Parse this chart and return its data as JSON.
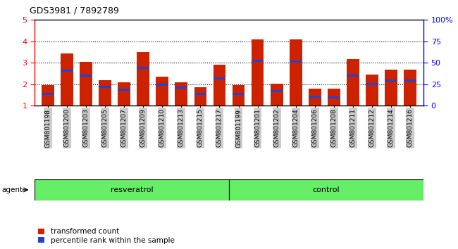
{
  "title": "GDS3981 / 7892789",
  "samples": [
    "GSM801198",
    "GSM801200",
    "GSM801203",
    "GSM801205",
    "GSM801207",
    "GSM801209",
    "GSM801210",
    "GSM801213",
    "GSM801215",
    "GSM801217",
    "GSM801199",
    "GSM801201",
    "GSM801202",
    "GSM801204",
    "GSM801206",
    "GSM801208",
    "GSM801211",
    "GSM801212",
    "GSM801214",
    "GSM801216"
  ],
  "bar_heights": [
    1.97,
    3.43,
    3.03,
    2.18,
    2.1,
    3.5,
    2.37,
    2.11,
    1.86,
    2.93,
    1.97,
    4.08,
    2.04,
    4.08,
    1.81,
    1.8,
    3.18,
    2.47,
    2.7,
    2.7
  ],
  "blue_markers": [
    1.57,
    2.65,
    2.4,
    1.87,
    1.75,
    2.78,
    1.98,
    1.85,
    1.55,
    2.28,
    1.57,
    3.08,
    1.68,
    3.05,
    1.42,
    1.38,
    2.42,
    2.02,
    2.17,
    2.17
  ],
  "group1_label": "resveratrol",
  "group2_label": "control",
  "group1_count": 10,
  "group2_count": 10,
  "bar_color": "#cc2200",
  "blue_color": "#2244cc",
  "bg_color": "#cccccc",
  "group_bg": "#66ee66",
  "ylim_left": [
    1,
    5
  ],
  "ylim_right": [
    0,
    100
  ],
  "yticks_left": [
    1,
    2,
    3,
    4,
    5
  ],
  "yticks_right": [
    0,
    25,
    50,
    75,
    100
  ],
  "ytick_labels_right": [
    "0",
    "25",
    "50",
    "75",
    "100%"
  ],
  "legend_labels": [
    "transformed count",
    "percentile rank within the sample"
  ],
  "agent_label": "agent",
  "bar_width": 0.65
}
